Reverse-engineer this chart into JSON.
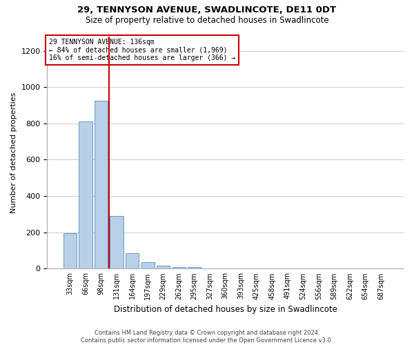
{
  "title1": "29, TENNYSON AVENUE, SWADLINCOTE, DE11 0DT",
  "title2": "Size of property relative to detached houses in Swadlincote",
  "xlabel": "Distribution of detached houses by size in Swadlincote",
  "ylabel": "Number of detached properties",
  "footer": "Contains HM Land Registry data © Crown copyright and database right 2024.\nContains public sector information licensed under the Open Government Licence v3.0.",
  "bins": [
    "33sqm",
    "66sqm",
    "98sqm",
    "131sqm",
    "164sqm",
    "197sqm",
    "229sqm",
    "262sqm",
    "295sqm",
    "327sqm",
    "360sqm",
    "393sqm",
    "425sqm",
    "458sqm",
    "491sqm",
    "524sqm",
    "556sqm",
    "589sqm",
    "622sqm",
    "654sqm",
    "687sqm"
  ],
  "values": [
    195,
    810,
    925,
    290,
    85,
    35,
    18,
    8,
    8,
    2,
    0,
    0,
    0,
    0,
    0,
    0,
    0,
    0,
    0,
    0,
    0
  ],
  "bar_color": "#b8d0e8",
  "bar_edge_color": "#6699cc",
  "ylim": [
    0,
    1280
  ],
  "yticks": [
    0,
    200,
    400,
    600,
    800,
    1000,
    1200
  ],
  "property_line_x": 2.5,
  "annotation_title": "29 TENNYSON AVENUE: 136sqm",
  "annotation_line1": "← 84% of detached houses are smaller (1,969)",
  "annotation_line2": "16% of semi-detached houses are larger (366) →",
  "annotation_color": "#cc0000",
  "title1_fontsize": 9.5,
  "title2_fontsize": 8.5,
  "xlabel_fontsize": 8.5,
  "ylabel_fontsize": 8,
  "annotation_fontsize": 7,
  "footer_fontsize": 6
}
